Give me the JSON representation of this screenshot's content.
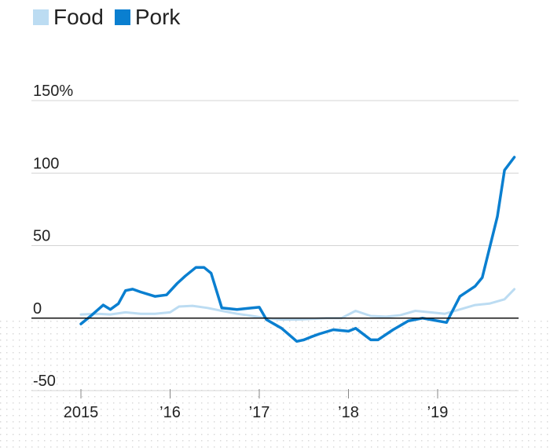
{
  "legend": [
    {
      "label": "Food",
      "color": "#bcdcf2"
    },
    {
      "label": "Pork",
      "color": "#0a7fd0"
    }
  ],
  "chart_data": {
    "type": "line",
    "title": "",
    "xlabel": "",
    "ylabel": "",
    "ylim": [
      -50,
      150
    ],
    "xlim": [
      2015.0,
      2019.88
    ],
    "yticks": [
      {
        "value": 150,
        "label": "150%"
      },
      {
        "value": 100,
        "label": "100"
      },
      {
        "value": 50,
        "label": "50"
      },
      {
        "value": 0,
        "label": "0"
      },
      {
        "value": -50,
        "label": "-50"
      }
    ],
    "xticks": [
      {
        "value": 2015,
        "label": "2015"
      },
      {
        "value": 2016,
        "label": "’16"
      },
      {
        "value": 2017,
        "label": "’17"
      },
      {
        "value": 2018,
        "label": "’18"
      },
      {
        "value": 2019,
        "label": "’19"
      }
    ],
    "grid": true,
    "legend_position": "top-left",
    "series": [
      {
        "name": "Food",
        "color": "#bcdcf2",
        "points": [
          [
            2015.0,
            2.5
          ],
          [
            2015.17,
            3
          ],
          [
            2015.33,
            2.5
          ],
          [
            2015.5,
            4
          ],
          [
            2015.67,
            3
          ],
          [
            2015.83,
            3
          ],
          [
            2016.0,
            4
          ],
          [
            2016.1,
            8
          ],
          [
            2016.25,
            8.5
          ],
          [
            2016.42,
            7
          ],
          [
            2016.58,
            5
          ],
          [
            2016.75,
            3
          ],
          [
            2016.92,
            1.5
          ],
          [
            2017.08,
            0
          ],
          [
            2017.25,
            -1
          ],
          [
            2017.42,
            -1
          ],
          [
            2017.58,
            -0.5
          ],
          [
            2017.75,
            0
          ],
          [
            2017.92,
            0
          ],
          [
            2018.08,
            5
          ],
          [
            2018.25,
            1.5
          ],
          [
            2018.42,
            1
          ],
          [
            2018.58,
            2
          ],
          [
            2018.75,
            5
          ],
          [
            2018.92,
            4
          ],
          [
            2019.08,
            3
          ],
          [
            2019.25,
            6
          ],
          [
            2019.42,
            9
          ],
          [
            2019.58,
            10
          ],
          [
            2019.75,
            13
          ],
          [
            2019.86,
            20
          ]
        ]
      },
      {
        "name": "Pork",
        "color": "#0a7fd0",
        "points": [
          [
            2015.0,
            -4
          ],
          [
            2015.12,
            2
          ],
          [
            2015.25,
            9
          ],
          [
            2015.33,
            6
          ],
          [
            2015.42,
            10
          ],
          [
            2015.5,
            19
          ],
          [
            2015.58,
            20
          ],
          [
            2015.67,
            18
          ],
          [
            2015.83,
            15
          ],
          [
            2015.96,
            16
          ],
          [
            2016.08,
            24
          ],
          [
            2016.17,
            29
          ],
          [
            2016.29,
            35
          ],
          [
            2016.38,
            35
          ],
          [
            2016.46,
            31
          ],
          [
            2016.58,
            7
          ],
          [
            2016.75,
            6
          ],
          [
            2016.92,
            7
          ],
          [
            2017.0,
            7.5
          ],
          [
            2017.08,
            -1
          ],
          [
            2017.25,
            -7
          ],
          [
            2017.42,
            -16
          ],
          [
            2017.5,
            -15
          ],
          [
            2017.58,
            -13
          ],
          [
            2017.67,
            -11
          ],
          [
            2017.83,
            -8
          ],
          [
            2018.0,
            -9
          ],
          [
            2018.08,
            -7
          ],
          [
            2018.25,
            -15
          ],
          [
            2018.33,
            -15
          ],
          [
            2018.5,
            -8
          ],
          [
            2018.67,
            -2
          ],
          [
            2018.83,
            0
          ],
          [
            2018.92,
            -1
          ],
          [
            2019.1,
            -3
          ],
          [
            2019.25,
            15
          ],
          [
            2019.42,
            22
          ],
          [
            2019.5,
            28
          ],
          [
            2019.67,
            70
          ],
          [
            2019.75,
            102
          ],
          [
            2019.86,
            111
          ]
        ]
      }
    ]
  }
}
